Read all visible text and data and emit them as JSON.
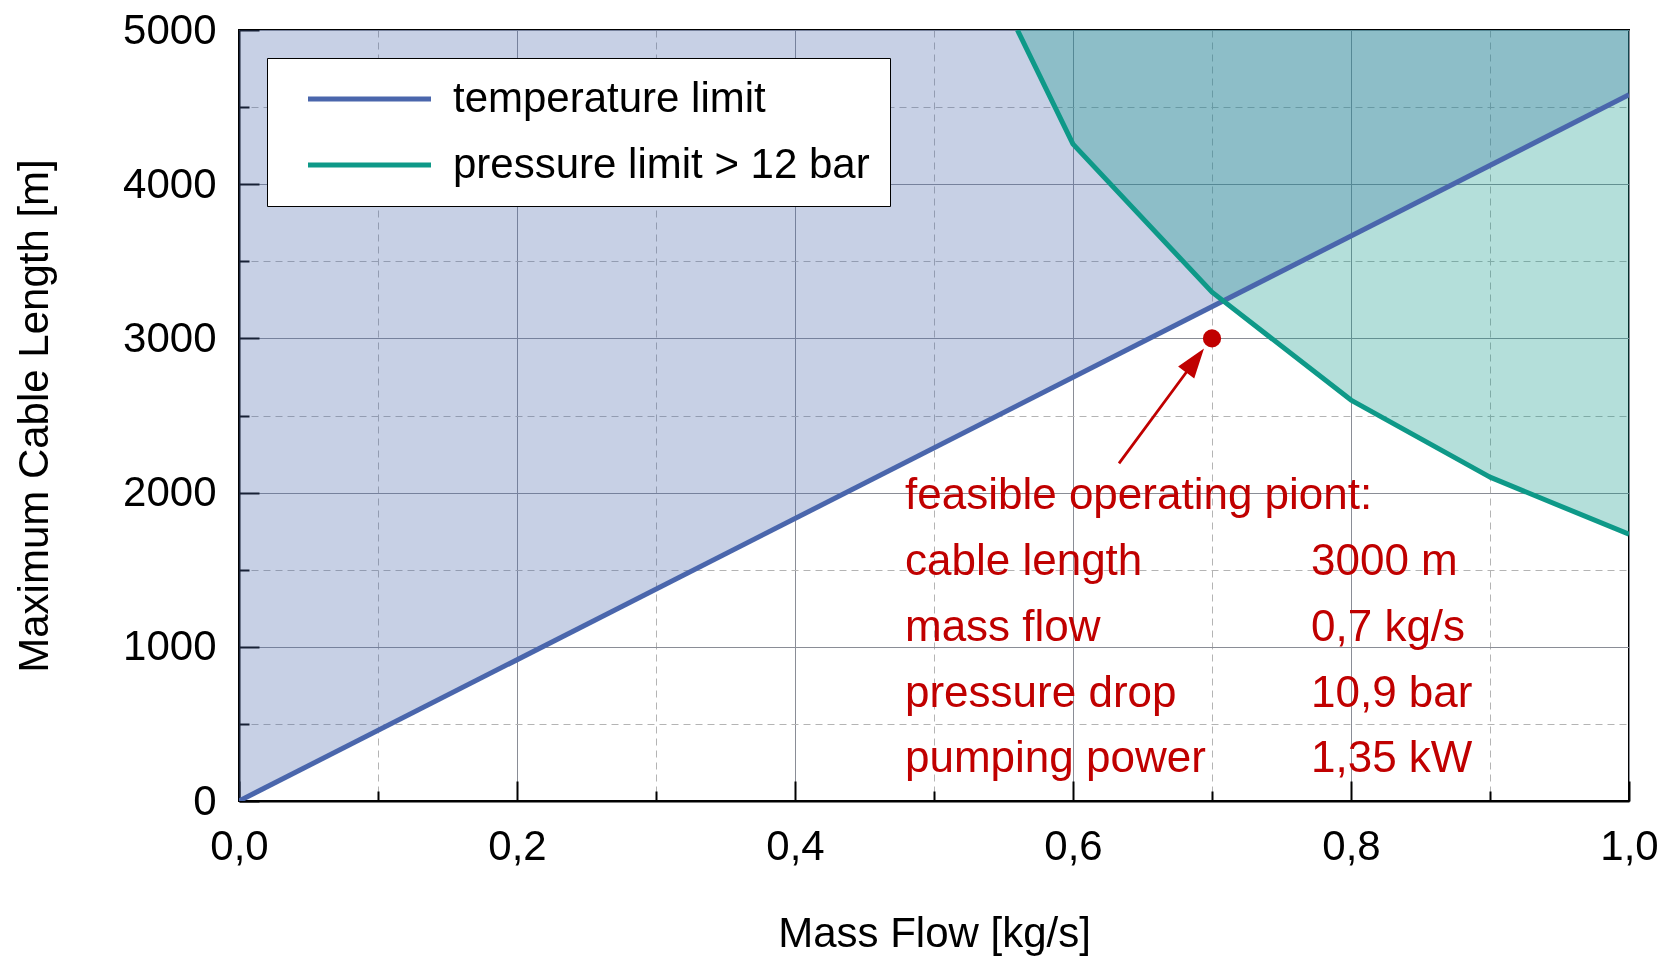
{
  "chart_data": {
    "type": "line",
    "xlabel": "Mass Flow [kg/s]",
    "ylabel": "Maximum Cable Length [m]",
    "xlim": [
      0,
      1
    ],
    "ylim": [
      0,
      5000
    ],
    "xticks": [
      {
        "value": 0,
        "label": "0,0"
      },
      {
        "value": 0.1,
        "label": null
      },
      {
        "value": 0.2,
        "label": "0,2"
      },
      {
        "value": 0.3,
        "label": null
      },
      {
        "value": 0.4,
        "label": "0,4"
      },
      {
        "value": 0.5,
        "label": null
      },
      {
        "value": 0.6,
        "label": "0,6"
      },
      {
        "value": 0.7,
        "label": null
      },
      {
        "value": 0.8,
        "label": "0,8"
      },
      {
        "value": 0.9,
        "label": null
      },
      {
        "value": 1,
        "label": "1,0"
      }
    ],
    "yticks": [
      0,
      {
        "value": 500,
        "label": null
      },
      1000,
      {
        "value": 1500,
        "label": null
      },
      2000,
      {
        "value": 2500,
        "label": null
      },
      3000,
      {
        "value": 3500,
        "label": null
      },
      4000,
      {
        "value": 4500,
        "label": null
      },
      5000
    ],
    "grid": true,
    "legend": "top left",
    "series": [
      {
        "name": "temperature limit",
        "color": "#4a66ac",
        "x": [
          0,
          1
        ],
        "values": [
          0,
          4580
        ],
        "lower": [
          0,
          4580
        ],
        "upper": [
          5000,
          5000
        ]
      },
      {
        "name": "pressure limit > 12 bar",
        "color": "#0e9988",
        "x": [
          0.56,
          0.6,
          0.7,
          0.8,
          0.9,
          1
        ],
        "values": [
          5000,
          4260,
          3300,
          2600,
          2100,
          1730
        ],
        "lower": [
          5000,
          4260,
          3300,
          2600,
          2100,
          1730
        ],
        "upper": [
          5000,
          5000,
          5000,
          5000,
          5000,
          5000
        ]
      },
      {
        "type": "scatter",
        "color": "#c00000",
        "marker": "circle",
        "x": [
          0.7
        ],
        "values": [
          3000
        ]
      }
    ],
    "annotations": [
      {
        "text": "feasible operating piont:",
        "x": 0.7,
        "y": 3000
      },
      "cable length",
      "3000 m",
      "mass flow",
      "0,7 kg/s",
      "pressure drop",
      "10,9 bar",
      "pumping power",
      "1,35 kW"
    ]
  }
}
